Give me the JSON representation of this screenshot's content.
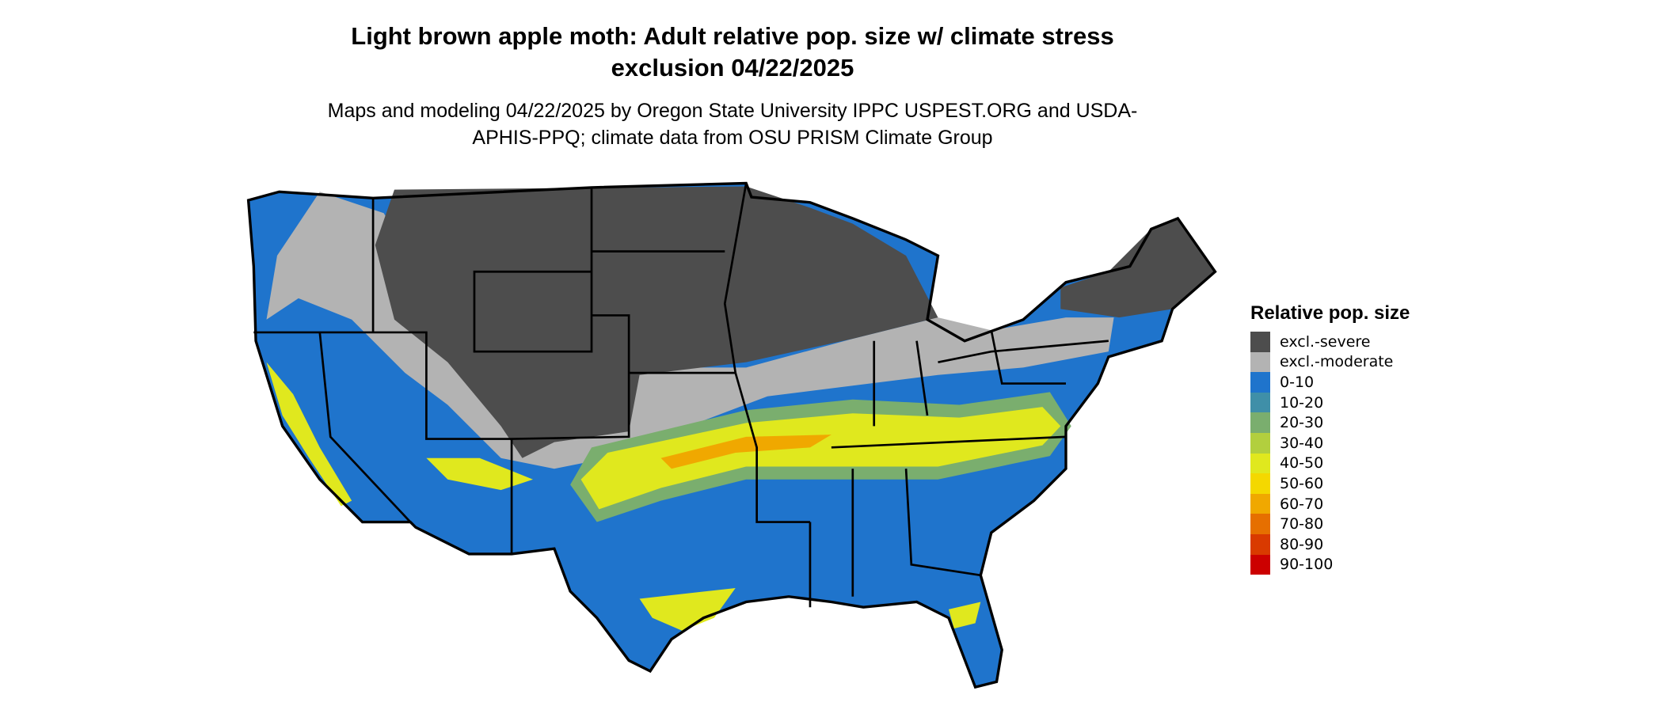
{
  "title": "Light brown apple moth: Adult relative pop. size w/ climate stress exclusion 04/22/2025",
  "subtitle": "Maps and modeling 04/22/2025 by Oregon State University IPPC USPEST.ORG and USDA-APHIS-PPQ; climate data from OSU PRISM Climate Group",
  "legend": {
    "title": "Relative pop. size",
    "items": [
      {
        "label": "excl.-severe",
        "color": "#4d4d4d"
      },
      {
        "label": "excl.-moderate",
        "color": "#b3b3b3"
      },
      {
        "label": "0-10",
        "color": "#1f74cc"
      },
      {
        "label": "10-20",
        "color": "#3f8fa8"
      },
      {
        "label": "20-30",
        "color": "#7aae6e"
      },
      {
        "label": "30-40",
        "color": "#b2cf3e"
      },
      {
        "label": "40-50",
        "color": "#e0e81e"
      },
      {
        "label": "50-60",
        "color": "#f4d800"
      },
      {
        "label": "60-70",
        "color": "#f0a800"
      },
      {
        "label": "70-80",
        "color": "#e66f00"
      },
      {
        "label": "80-90",
        "color": "#d93a00"
      },
      {
        "label": "90-100",
        "color": "#cc0000"
      }
    ]
  }
}
